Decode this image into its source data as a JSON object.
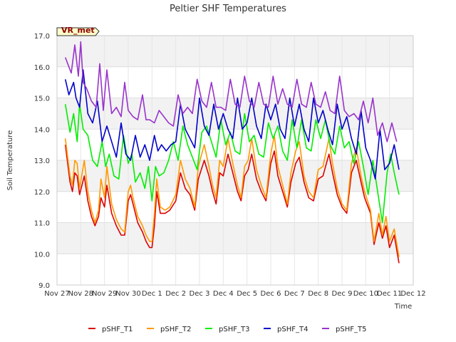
{
  "chart_data": {
    "type": "line",
    "title": "Peltier SHF Temperatures",
    "xlabel": "Time",
    "ylabel": "Soil Temperature",
    "site_label": "VR_met",
    "ylim": [
      9.0,
      17.0
    ],
    "xlim": [
      0,
      15
    ],
    "yticks": [
      "9.0",
      "10.0",
      "11.0",
      "12.0",
      "13.0",
      "14.0",
      "15.0",
      "16.0",
      "17.0"
    ],
    "xticks": [
      "Nov 27",
      "Nov 28",
      "Nov 29",
      "Nov 30",
      "Dec 1",
      "Dec 2",
      "Dec 3",
      "Dec 4",
      "Dec 5",
      "Dec 6",
      "Dec 7",
      "Dec 8",
      "Dec 9",
      "Dec 10",
      "Dec 11",
      "Dec 12"
    ],
    "grid": true,
    "legend_position": "bottom",
    "series": [
      {
        "name": "pSHF_T1",
        "color": "#dd0000",
        "x": [
          0.35,
          0.55,
          0.65,
          0.75,
          0.85,
          0.95,
          1.15,
          1.3,
          1.45,
          1.6,
          1.75,
          1.85,
          2.0,
          2.1,
          2.3,
          2.5,
          2.7,
          2.85,
          3.0,
          3.1,
          3.2,
          3.4,
          3.6,
          3.75,
          3.9,
          4.0,
          4.1,
          4.2,
          4.35,
          4.55,
          4.75,
          5.0,
          5.2,
          5.4,
          5.6,
          5.8,
          5.95,
          6.2,
          6.4,
          6.55,
          6.7,
          6.85,
          7.0,
          7.2,
          7.4,
          7.6,
          7.75,
          7.9,
          8.05,
          8.2,
          8.4,
          8.6,
          8.8,
          9.0,
          9.15,
          9.3,
          9.5,
          9.7,
          9.85,
          10.05,
          10.2,
          10.4,
          10.6,
          10.8,
          11.0,
          11.2,
          11.45,
          11.6,
          11.8,
          12.0,
          12.2,
          12.4,
          12.6,
          12.8,
          12.95,
          13.2,
          13.35,
          13.55,
          13.7,
          13.85,
          14.0,
          14.2,
          14.4
        ],
        "y": [
          13.5,
          12.3,
          12.0,
          12.6,
          12.5,
          11.9,
          12.5,
          11.7,
          11.2,
          10.9,
          11.2,
          11.8,
          11.5,
          12.2,
          11.3,
          10.9,
          10.6,
          10.6,
          11.7,
          11.9,
          11.6,
          11.0,
          10.7,
          10.4,
          10.2,
          10.2,
          10.9,
          12.0,
          11.3,
          11.3,
          11.4,
          11.7,
          12.6,
          12.1,
          11.9,
          11.4,
          12.4,
          13.0,
          12.5,
          12.0,
          11.6,
          12.6,
          12.5,
          13.2,
          12.6,
          12.0,
          11.7,
          12.5,
          12.7,
          13.2,
          12.4,
          12.0,
          11.7,
          12.9,
          13.3,
          12.5,
          12.0,
          11.5,
          12.3,
          12.9,
          13.1,
          12.3,
          11.8,
          11.7,
          12.4,
          12.5,
          13.2,
          12.6,
          11.9,
          11.5,
          11.3,
          12.6,
          13.0,
          12.3,
          11.8,
          11.3,
          10.3,
          11.0,
          10.5,
          10.9,
          10.2,
          10.6,
          9.7
        ]
      },
      {
        "name": "pSHF_T2",
        "color": "#ff9900",
        "x": [
          0.35,
          0.55,
          0.65,
          0.75,
          0.85,
          0.95,
          1.15,
          1.3,
          1.45,
          1.6,
          1.75,
          1.85,
          2.0,
          2.1,
          2.3,
          2.5,
          2.7,
          2.85,
          3.0,
          3.1,
          3.2,
          3.4,
          3.6,
          3.75,
          3.9,
          4.0,
          4.1,
          4.2,
          4.35,
          4.55,
          4.75,
          5.0,
          5.2,
          5.4,
          5.6,
          5.8,
          5.95,
          6.2,
          6.4,
          6.55,
          6.7,
          6.85,
          7.0,
          7.2,
          7.4,
          7.6,
          7.75,
          7.9,
          8.05,
          8.2,
          8.4,
          8.6,
          8.8,
          9.0,
          9.15,
          9.3,
          9.5,
          9.7,
          9.85,
          10.05,
          10.2,
          10.4,
          10.6,
          10.8,
          11.0,
          11.2,
          11.45,
          11.6,
          11.8,
          12.0,
          12.2,
          12.4,
          12.6,
          12.8,
          12.95,
          13.2,
          13.35,
          13.55,
          13.7,
          13.85,
          14.0,
          14.2,
          14.4
        ],
        "y": [
          13.7,
          12.5,
          12.2,
          13.0,
          12.9,
          12.1,
          13.0,
          12.0,
          11.4,
          11.0,
          11.4,
          12.4,
          11.8,
          12.8,
          11.6,
          11.1,
          10.8,
          10.7,
          12.0,
          12.2,
          11.8,
          11.2,
          10.9,
          10.6,
          10.4,
          10.4,
          11.3,
          12.4,
          11.5,
          11.4,
          11.5,
          11.9,
          13.0,
          12.4,
          12.1,
          11.5,
          12.8,
          13.5,
          12.8,
          12.2,
          11.8,
          13.0,
          12.8,
          13.7,
          12.9,
          12.2,
          11.8,
          12.8,
          13.0,
          13.7,
          12.7,
          12.2,
          11.8,
          13.2,
          13.8,
          12.8,
          12.2,
          11.6,
          12.6,
          13.3,
          13.6,
          12.5,
          12.0,
          11.8,
          12.7,
          12.8,
          13.7,
          12.9,
          12.1,
          11.6,
          11.4,
          12.9,
          13.4,
          12.5,
          12.0,
          11.4,
          10.4,
          11.3,
          10.6,
          11.2,
          10.4,
          10.8,
          9.9
        ]
      },
      {
        "name": "pSHF_T3",
        "color": "#00ee00",
        "x": [
          0.35,
          0.55,
          0.7,
          0.85,
          0.95,
          1.1,
          1.3,
          1.5,
          1.7,
          1.9,
          2.05,
          2.2,
          2.4,
          2.6,
          2.8,
          3.0,
          3.15,
          3.3,
          3.5,
          3.7,
          3.85,
          4.0,
          4.15,
          4.3,
          4.5,
          4.7,
          4.9,
          5.1,
          5.3,
          5.5,
          5.7,
          5.9,
          6.1,
          6.3,
          6.5,
          6.7,
          6.9,
          7.1,
          7.3,
          7.5,
          7.7,
          7.9,
          8.1,
          8.3,
          8.5,
          8.7,
          8.9,
          9.1,
          9.3,
          9.5,
          9.7,
          9.9,
          10.1,
          10.3,
          10.5,
          10.7,
          10.9,
          11.1,
          11.3,
          11.5,
          11.7,
          11.9,
          12.1,
          12.3,
          12.5,
          12.7,
          12.9,
          13.1,
          13.3,
          13.5,
          13.7,
          13.9,
          14.05,
          14.2,
          14.4
        ],
        "y": [
          14.8,
          13.9,
          14.5,
          13.6,
          14.8,
          14.0,
          13.8,
          13.0,
          12.8,
          13.6,
          12.8,
          13.2,
          12.5,
          12.4,
          13.8,
          12.9,
          13.2,
          12.3,
          12.6,
          12.1,
          12.8,
          11.7,
          12.8,
          12.5,
          12.6,
          13.0,
          13.6,
          13.0,
          14.1,
          13.5,
          13.1,
          12.7,
          13.9,
          14.1,
          13.6,
          13.1,
          14.3,
          13.5,
          13.9,
          13.3,
          13.2,
          14.5,
          13.6,
          13.8,
          13.2,
          13.1,
          14.2,
          13.7,
          14.1,
          13.3,
          13.0,
          14.3,
          13.4,
          14.3,
          13.4,
          13.3,
          14.3,
          13.7,
          14.3,
          13.5,
          13.2,
          14.1,
          13.4,
          13.6,
          12.9,
          13.6,
          12.8,
          11.9,
          13.0,
          12.0,
          11.0,
          12.6,
          13.2,
          12.6,
          11.9
        ]
      },
      {
        "name": "pSHF_T4",
        "color": "#0000cc",
        "x": [
          0.35,
          0.5,
          0.7,
          0.8,
          0.95,
          1.1,
          1.3,
          1.5,
          1.7,
          1.9,
          2.1,
          2.3,
          2.5,
          2.7,
          2.9,
          3.1,
          3.3,
          3.5,
          3.7,
          3.9,
          4.1,
          4.25,
          4.4,
          4.6,
          4.8,
          5.0,
          5.2,
          5.4,
          5.6,
          5.8,
          6.0,
          6.2,
          6.4,
          6.6,
          6.8,
          7.0,
          7.2,
          7.4,
          7.6,
          7.8,
          8.0,
          8.2,
          8.4,
          8.6,
          8.8,
          9.0,
          9.2,
          9.4,
          9.6,
          9.8,
          10.0,
          10.2,
          10.4,
          10.6,
          10.8,
          11.0,
          11.2,
          11.4,
          11.6,
          11.8,
          12.0,
          12.2,
          12.4,
          12.6,
          12.8,
          13.0,
          13.2,
          13.4,
          13.6,
          13.8,
          14.0,
          14.2,
          14.4
        ],
        "y": [
          15.6,
          15.1,
          15.5,
          15.0,
          14.7,
          15.9,
          14.5,
          14.2,
          14.9,
          13.6,
          14.1,
          13.6,
          13.1,
          14.2,
          13.2,
          13.0,
          13.8,
          13.1,
          13.5,
          13.0,
          13.8,
          13.3,
          13.5,
          13.3,
          13.5,
          13.6,
          14.8,
          14.0,
          13.7,
          13.4,
          15.0,
          14.1,
          13.8,
          14.8,
          14.0,
          14.5,
          14.0,
          13.7,
          15.0,
          14.0,
          14.2,
          15.0,
          14.1,
          13.7,
          14.8,
          14.3,
          14.8,
          14.0,
          13.7,
          15.0,
          14.1,
          14.8,
          14.0,
          13.6,
          15.0,
          14.2,
          14.6,
          14.0,
          13.5,
          14.8,
          14.0,
          14.4,
          13.7,
          13.2,
          14.6,
          13.4,
          13.0,
          12.4,
          14.0,
          12.7,
          12.9,
          13.5,
          12.7
        ]
      },
      {
        "name": "pSHF_T5",
        "color": "#9933cc",
        "x": [
          0.35,
          0.5,
          0.6,
          0.75,
          0.9,
          1.0,
          1.1,
          1.25,
          1.45,
          1.65,
          1.8,
          1.95,
          2.1,
          2.3,
          2.5,
          2.7,
          2.85,
          3.0,
          3.2,
          3.4,
          3.6,
          3.75,
          3.9,
          4.1,
          4.3,
          4.5,
          4.7,
          4.9,
          5.1,
          5.3,
          5.5,
          5.7,
          5.9,
          6.1,
          6.3,
          6.5,
          6.7,
          6.9,
          7.1,
          7.3,
          7.5,
          7.7,
          7.9,
          8.1,
          8.3,
          8.5,
          8.7,
          8.9,
          9.1,
          9.3,
          9.5,
          9.7,
          9.9,
          10.1,
          10.3,
          10.5,
          10.7,
          10.9,
          11.1,
          11.3,
          11.5,
          11.7,
          11.9,
          12.1,
          12.3,
          12.5,
          12.7,
          12.9,
          13.1,
          13.3,
          13.5,
          13.7,
          13.9,
          14.1,
          14.3
        ],
        "y": [
          16.3,
          16.0,
          15.8,
          16.7,
          15.7,
          16.8,
          15.5,
          15.3,
          14.9,
          14.7,
          16.1,
          14.6,
          15.9,
          14.5,
          14.7,
          14.4,
          15.5,
          14.6,
          14.4,
          14.3,
          15.1,
          14.3,
          14.3,
          14.2,
          14.6,
          14.4,
          14.2,
          14.1,
          15.1,
          14.5,
          14.7,
          14.5,
          15.6,
          14.9,
          14.7,
          15.5,
          14.7,
          14.7,
          14.6,
          15.6,
          14.8,
          14.7,
          15.7,
          14.9,
          14.7,
          15.5,
          14.8,
          14.7,
          15.7,
          14.8,
          15.3,
          14.8,
          14.7,
          15.6,
          14.8,
          14.7,
          15.5,
          14.8,
          14.7,
          15.2,
          14.6,
          14.5,
          15.7,
          14.6,
          14.4,
          14.5,
          14.3,
          14.9,
          14.2,
          15.0,
          13.8,
          14.2,
          13.6,
          14.2,
          13.6
        ]
      }
    ]
  }
}
